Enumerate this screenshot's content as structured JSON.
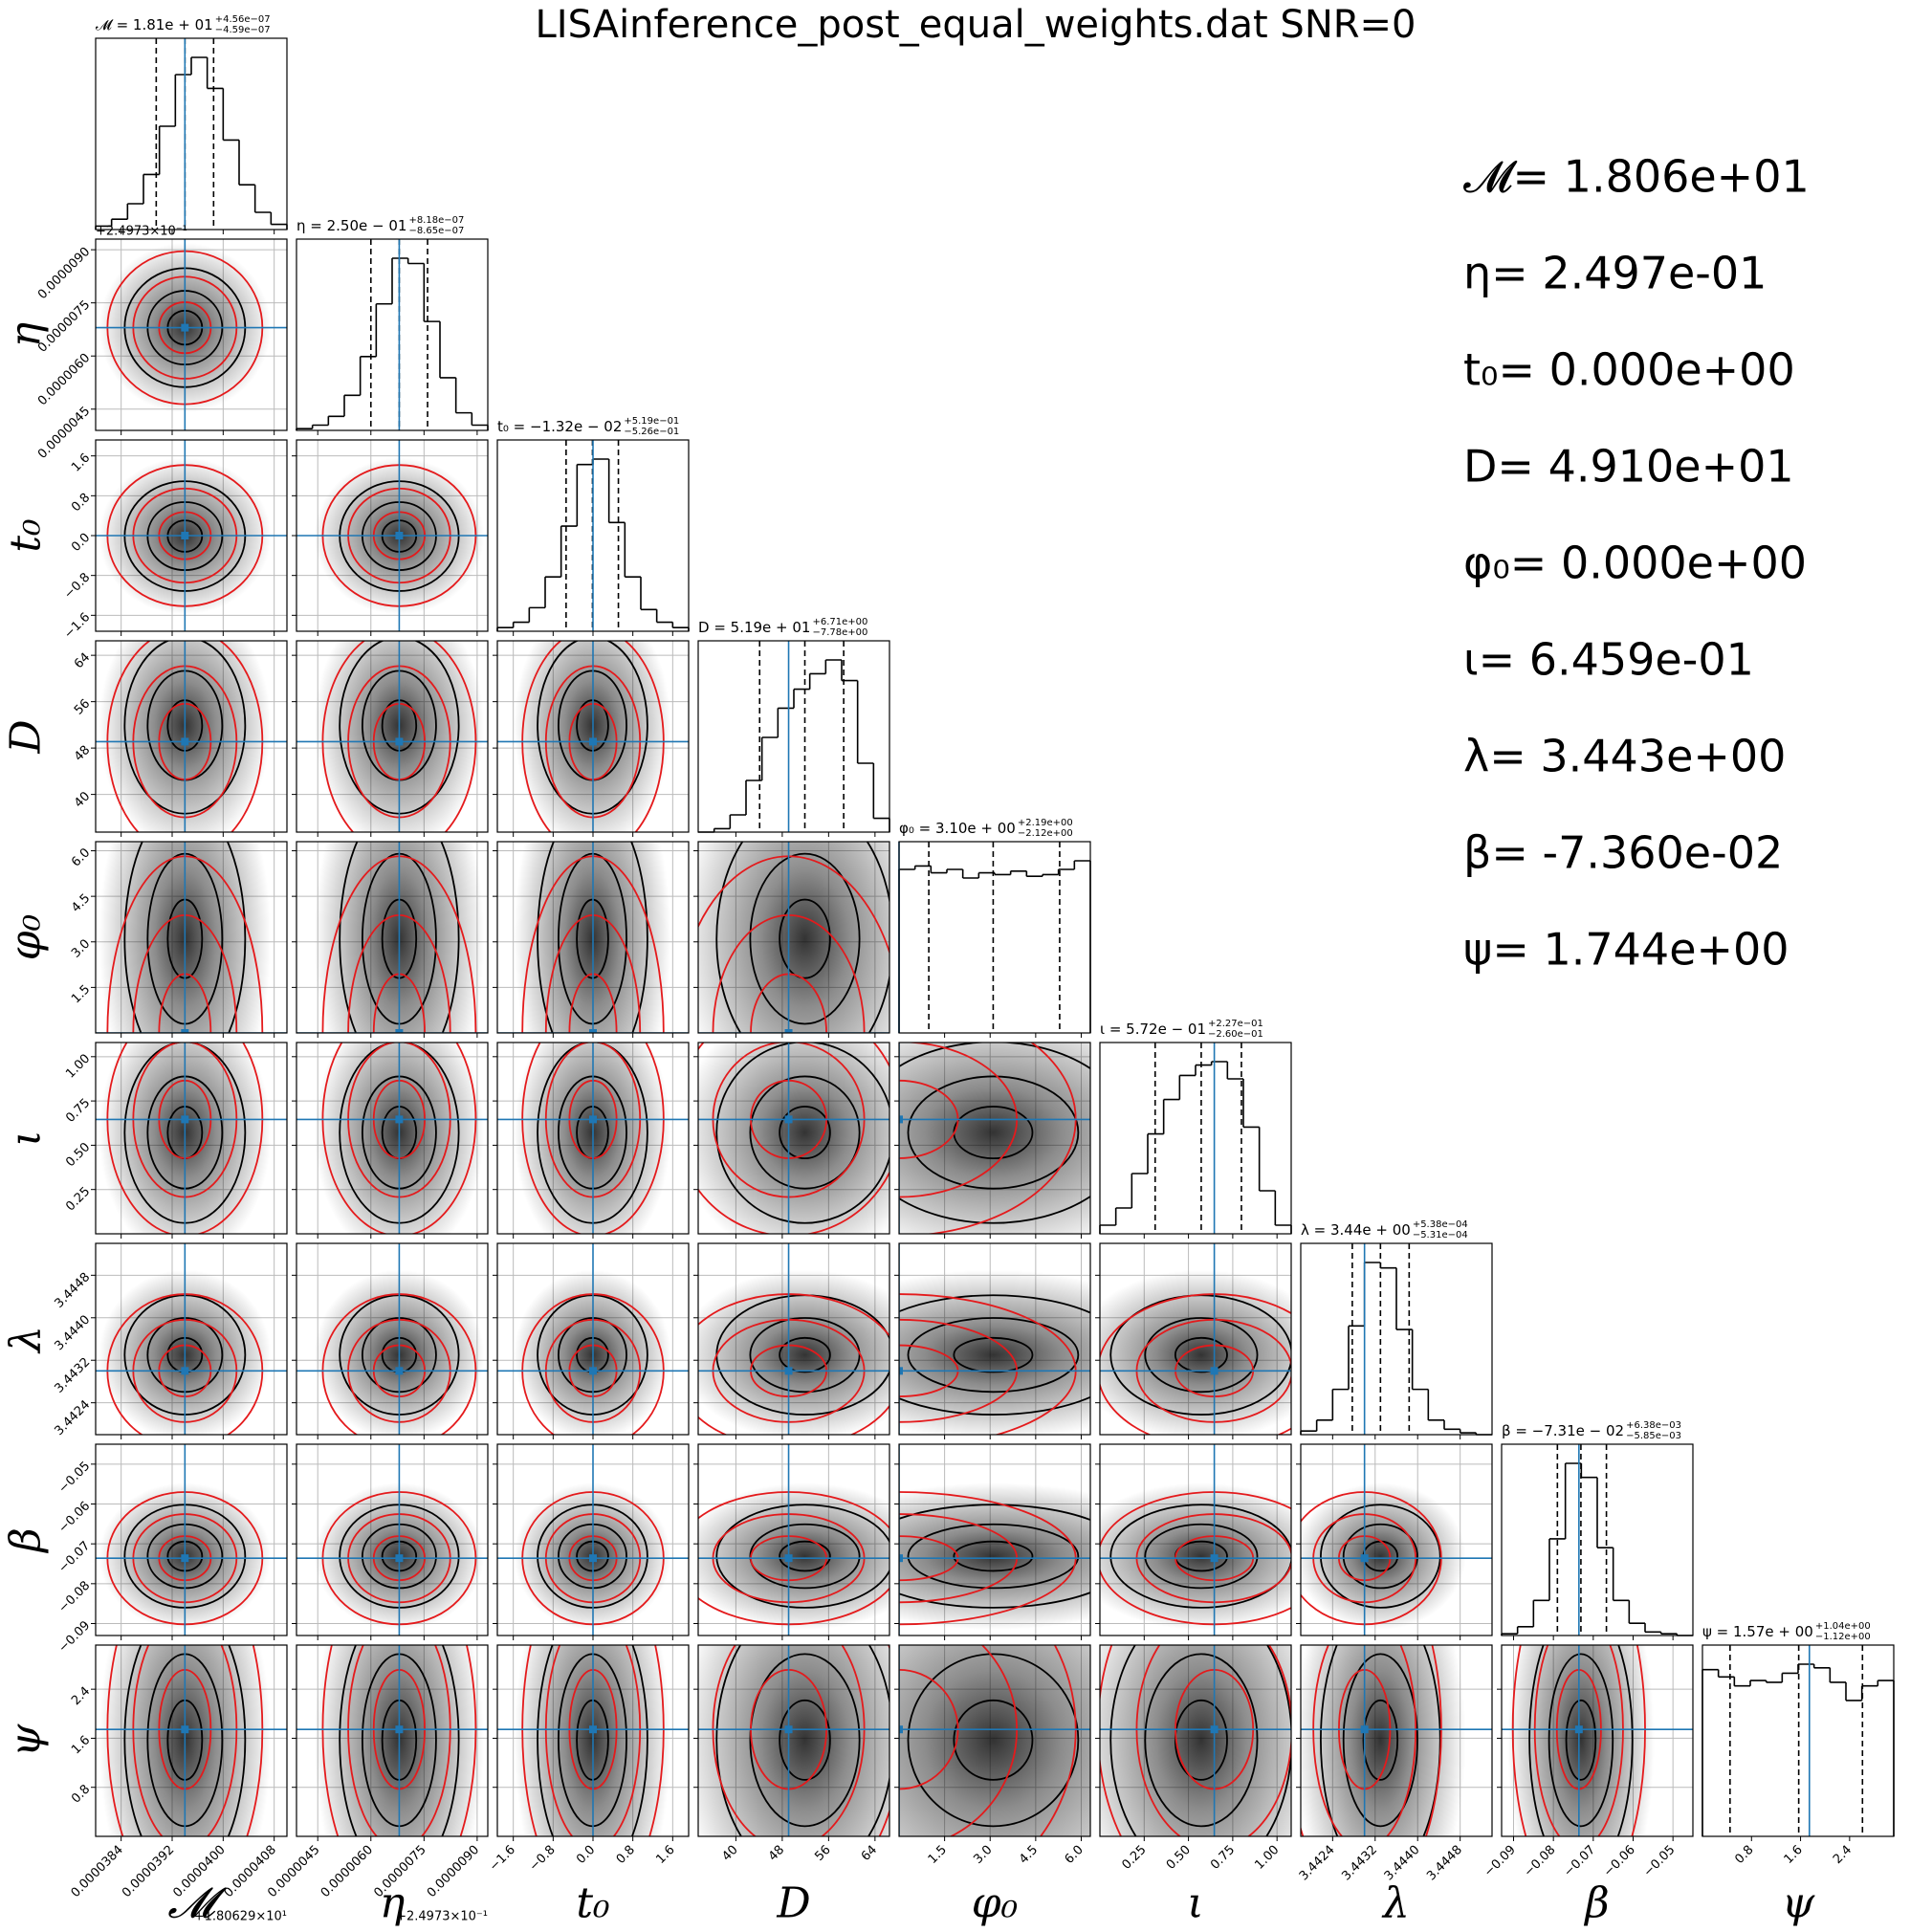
{
  "chart_data": {
    "type": "corner",
    "title": "LISAinference_post_equal_weights.dat  SNR=0",
    "truth_color": "#1f77b4",
    "fisher_color": "#e41a1c",
    "hist_color": "#000000",
    "grid": true,
    "params": [
      {
        "label": "𝓜",
        "offset": "+1.80629×10¹",
        "truth": 3.94e-05,
        "truth_text": "𝓜= 1.806e+01",
        "title": "𝓜 = 1.81e + 01",
        "title_upper": "+4.56e−07",
        "title_lower": "−4.59e−07",
        "lim": [
          3.8e-05,
          4.1e-05
        ],
        "ticks": [
          {
            "value": 3.84e-05,
            "label": "0.0000384"
          },
          {
            "value": 3.92e-05,
            "label": "0.0000392"
          },
          {
            "value": 4e-05,
            "label": "0.0000400"
          },
          {
            "value": 4.08e-05,
            "label": "0.0000408"
          }
        ],
        "quantiles": [
          3.895e-05,
          3.94e-05,
          3.985e-05
        ],
        "bins": [
          3.8e-05,
          3.825e-05,
          3.85e-05,
          3.875e-05,
          3.9e-05,
          3.925e-05,
          3.95e-05,
          3.975e-05,
          4e-05,
          4.025e-05,
          4.05e-05,
          4.075e-05,
          4.1e-05
        ],
        "counts": [
          0.02,
          0.06,
          0.15,
          0.32,
          0.6,
          0.9,
          1.0,
          0.82,
          0.52,
          0.26,
          0.1,
          0.03
        ]
      },
      {
        "label": "η",
        "offset": "+2.4973×10⁻¹",
        "truth": 6.8e-06,
        "truth_text": "η= 2.497e-01",
        "title": "η = 2.50e − 01",
        "title_upper": "+8.18e−07",
        "title_lower": "−8.65e−07",
        "lim": [
          3.9e-06,
          9.3e-06
        ],
        "ticks": [
          {
            "value": 4.5e-06,
            "label": "0.0000045"
          },
          {
            "value": 6e-06,
            "label": "0.0000060"
          },
          {
            "value": 7.5e-06,
            "label": "0.0000075"
          },
          {
            "value": 9e-06,
            "label": "0.0000090"
          }
        ],
        "quantiles": [
          6e-06,
          6.8e-06,
          7.6e-06
        ],
        "bins": [
          3.9e-06,
          4.35e-06,
          4.8e-06,
          5.25e-06,
          5.7e-06,
          6.15e-06,
          6.6e-06,
          7.05e-06,
          7.5e-06,
          7.95e-06,
          8.4e-06,
          8.85e-06,
          9.3e-06
        ],
        "counts": [
          0.01,
          0.03,
          0.08,
          0.2,
          0.42,
          0.72,
          0.98,
          0.95,
          0.62,
          0.3,
          0.1,
          0.03
        ]
      },
      {
        "label": "t₀",
        "truth": 0,
        "truth_text": "t₀= 0.000e+00",
        "title": "t₀ = −1.32e − 02",
        "title_upper": "+5.19e−01",
        "title_lower": "−5.26e−01",
        "lim": [
          -1.92,
          1.92
        ],
        "ticks": [
          {
            "value": -1.6,
            "label": "−1.6"
          },
          {
            "value": -0.8,
            "label": "−0.8"
          },
          {
            "value": 0,
            "label": "0.0"
          },
          0.8,
          1.6
        ],
        "quantiles": [
          -0.54,
          -0.01,
          0.51
        ],
        "bins": [
          -1.92,
          -1.6,
          -1.28,
          -0.96,
          -0.64,
          -0.32,
          0,
          0.32,
          0.64,
          0.96,
          1.28,
          1.6,
          1.92
        ],
        "counts": [
          0.02,
          0.05,
          0.13,
          0.3,
          0.58,
          0.92,
          0.95,
          0.6,
          0.3,
          0.12,
          0.05,
          0.02
        ]
      },
      {
        "label": "D",
        "truth": 49.1,
        "truth_text": "D= 4.910e+01",
        "title": "D = 5.19e + 01",
        "title_upper": "+6.71e+00",
        "title_lower": "−7.78e+00",
        "lim": [
          33.5,
          66.5
        ],
        "ticks": [
          40,
          48,
          56,
          64
        ],
        "quantiles": [
          44.1,
          51.9,
          58.6
        ],
        "bins": [
          33.5,
          36.25,
          39,
          41.75,
          44.5,
          47.25,
          50,
          52.75,
          55.5,
          58.25,
          61,
          63.75,
          66.5
        ],
        "counts": [
          0.0,
          0.02,
          0.1,
          0.3,
          0.55,
          0.72,
          0.83,
          0.92,
          1.0,
          0.88,
          0.4,
          0.08
        ]
      },
      {
        "label": "φ₀",
        "truth": 0,
        "truth_text": "φ₀= 0.000e+00",
        "title": "φ₀ = 3.10e + 00",
        "title_upper": "+2.19e+00",
        "title_lower": "−2.12e+00",
        "lim": [
          0,
          6.3
        ],
        "ticks": [
          1.5,
          {
            "value": 3,
            "label": "3.0"
          },
          4.5,
          {
            "value": 6,
            "label": "6.0"
          }
        ],
        "quantiles": [
          0.98,
          3.1,
          5.29
        ],
        "bins": [
          0,
          0.525,
          1.05,
          1.575,
          2.1,
          2.625,
          3.15,
          3.675,
          4.2,
          4.725,
          5.25,
          5.775,
          6.3
        ],
        "counts": [
          0.95,
          0.97,
          0.93,
          0.95,
          0.9,
          0.93,
          0.92,
          0.94,
          0.91,
          0.92,
          0.95,
          1.0
        ]
      },
      {
        "label": "ι",
        "truth": 0.6459,
        "truth_text": "ι= 6.459e-01",
        "title": "ι = 5.72e − 01",
        "title_upper": "+2.27e−01",
        "title_lower": "−2.60e−01",
        "lim": [
          0,
          1.08
        ],
        "ticks": [
          0.25,
          {
            "value": 0.5,
            "label": "0.50"
          },
          0.75,
          {
            "value": 1,
            "label": "1.00"
          }
        ],
        "quantiles": [
          0.312,
          0.572,
          0.799
        ],
        "bins": [
          0,
          0.09,
          0.18,
          0.27,
          0.36,
          0.45,
          0.54,
          0.63,
          0.72,
          0.81,
          0.9,
          0.99,
          1.08
        ],
        "counts": [
          0.05,
          0.15,
          0.35,
          0.58,
          0.78,
          0.92,
          0.98,
          1.0,
          0.9,
          0.62,
          0.25,
          0.05
        ]
      },
      {
        "label": "λ",
        "truth": 3.443,
        "truth_text": "λ= 3.443e+00",
        "title": "λ = 3.44e + 00",
        "title_upper": "+5.38e−04",
        "title_lower": "−5.31e−04",
        "lim": [
          3.4418,
          3.4454
        ],
        "ticks": [
          3.4424,
          3.4432,
          {
            "value": 3.444,
            "label": "3.4440"
          },
          3.4448
        ],
        "quantiles": [
          3.44277,
          3.4433,
          3.44384
        ],
        "bins": [
          3.4418,
          3.4421,
          3.4424,
          3.4427,
          3.443,
          3.4433,
          3.4436,
          3.4439,
          3.4442,
          3.4445,
          3.4448,
          3.4451,
          3.4454
        ],
        "counts": [
          0.02,
          0.08,
          0.25,
          0.6,
          0.95,
          0.92,
          0.58,
          0.25,
          0.08,
          0.03,
          0.01,
          0.0
        ]
      },
      {
        "label": "β",
        "truth": -0.0736,
        "truth_text": "β= -7.360e-02",
        "title": "β = −7.31e − 02",
        "title_upper": "+6.38e−03",
        "title_lower": "−5.85e−03",
        "lim": [
          -0.093,
          -0.045
        ],
        "ticks": [
          {
            "value": -0.09,
            "label": "−0.09"
          },
          {
            "value": -0.08,
            "label": "−0.08"
          },
          {
            "value": -0.07,
            "label": "−0.07"
          },
          {
            "value": -0.06,
            "label": "−0.06"
          },
          {
            "value": -0.05,
            "label": "−0.05"
          }
        ],
        "quantiles": [
          -0.079,
          -0.0731,
          -0.0667
        ],
        "bins": [
          -0.093,
          -0.089,
          -0.085,
          -0.081,
          -0.077,
          -0.073,
          -0.069,
          -0.065,
          -0.061,
          -0.057,
          -0.053,
          -0.049,
          -0.045
        ],
        "counts": [
          0.01,
          0.05,
          0.2,
          0.55,
          0.98,
          0.9,
          0.5,
          0.2,
          0.07,
          0.02,
          0.01,
          0.0
        ]
      },
      {
        "label": "ψ",
        "truth": 1.744,
        "truth_text": "ψ= 1.744e+00",
        "title": "ψ = 1.57e + 00",
        "title_upper": "+1.04e+00",
        "title_lower": "−1.12e+00",
        "lim": [
          0,
          3.12
        ],
        "ticks": [
          0.8,
          1.6,
          2.4
        ],
        "quantiles": [
          0.45,
          1.57,
          2.61
        ],
        "bins": [
          0,
          0.26,
          0.52,
          0.78,
          1.04,
          1.3,
          1.56,
          1.82,
          2.08,
          2.34,
          2.6,
          2.86,
          3.12
        ],
        "counts": [
          0.92,
          0.88,
          0.83,
          0.86,
          0.85,
          0.9,
          0.95,
          0.93,
          0.85,
          0.75,
          0.83,
          0.86
        ]
      }
    ]
  }
}
